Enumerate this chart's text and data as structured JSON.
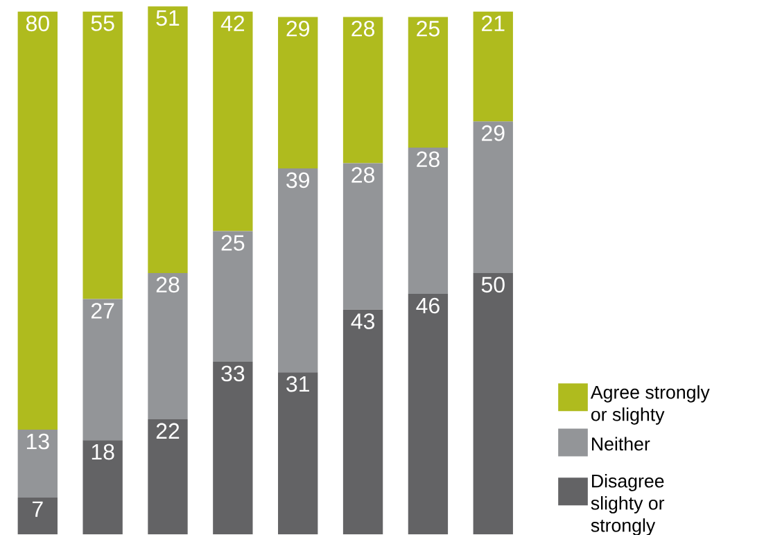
{
  "chart_data": {
    "type": "bar",
    "stacked": true,
    "legend": "right",
    "categories": [
      null,
      null,
      null,
      null,
      null,
      null,
      null,
      null
    ],
    "series": [
      {
        "name": "Disagree slighty or strongly",
        "color": "#636365",
        "values": [
          7,
          18,
          22,
          33,
          31,
          43,
          46,
          50
        ],
        "value_labels": [
          "7",
          "18",
          "22",
          "33",
          "31",
          "43",
          "46",
          "50"
        ]
      },
      {
        "name": "Neither",
        "color": "#939598",
        "values": [
          13,
          27,
          28,
          25,
          39,
          28,
          28,
          29
        ],
        "value_labels": [
          "13",
          "27",
          "28",
          "25",
          "39",
          "28",
          "28",
          "29"
        ]
      },
      {
        "name": "Agree strongly or slighty",
        "color": "#afbb1e",
        "values": [
          80,
          55,
          51,
          42,
          29,
          28,
          25,
          21
        ],
        "value_labels": [
          "80",
          "55",
          "51",
          "42",
          "29",
          "28",
          "25",
          "21"
        ]
      }
    ]
  }
}
